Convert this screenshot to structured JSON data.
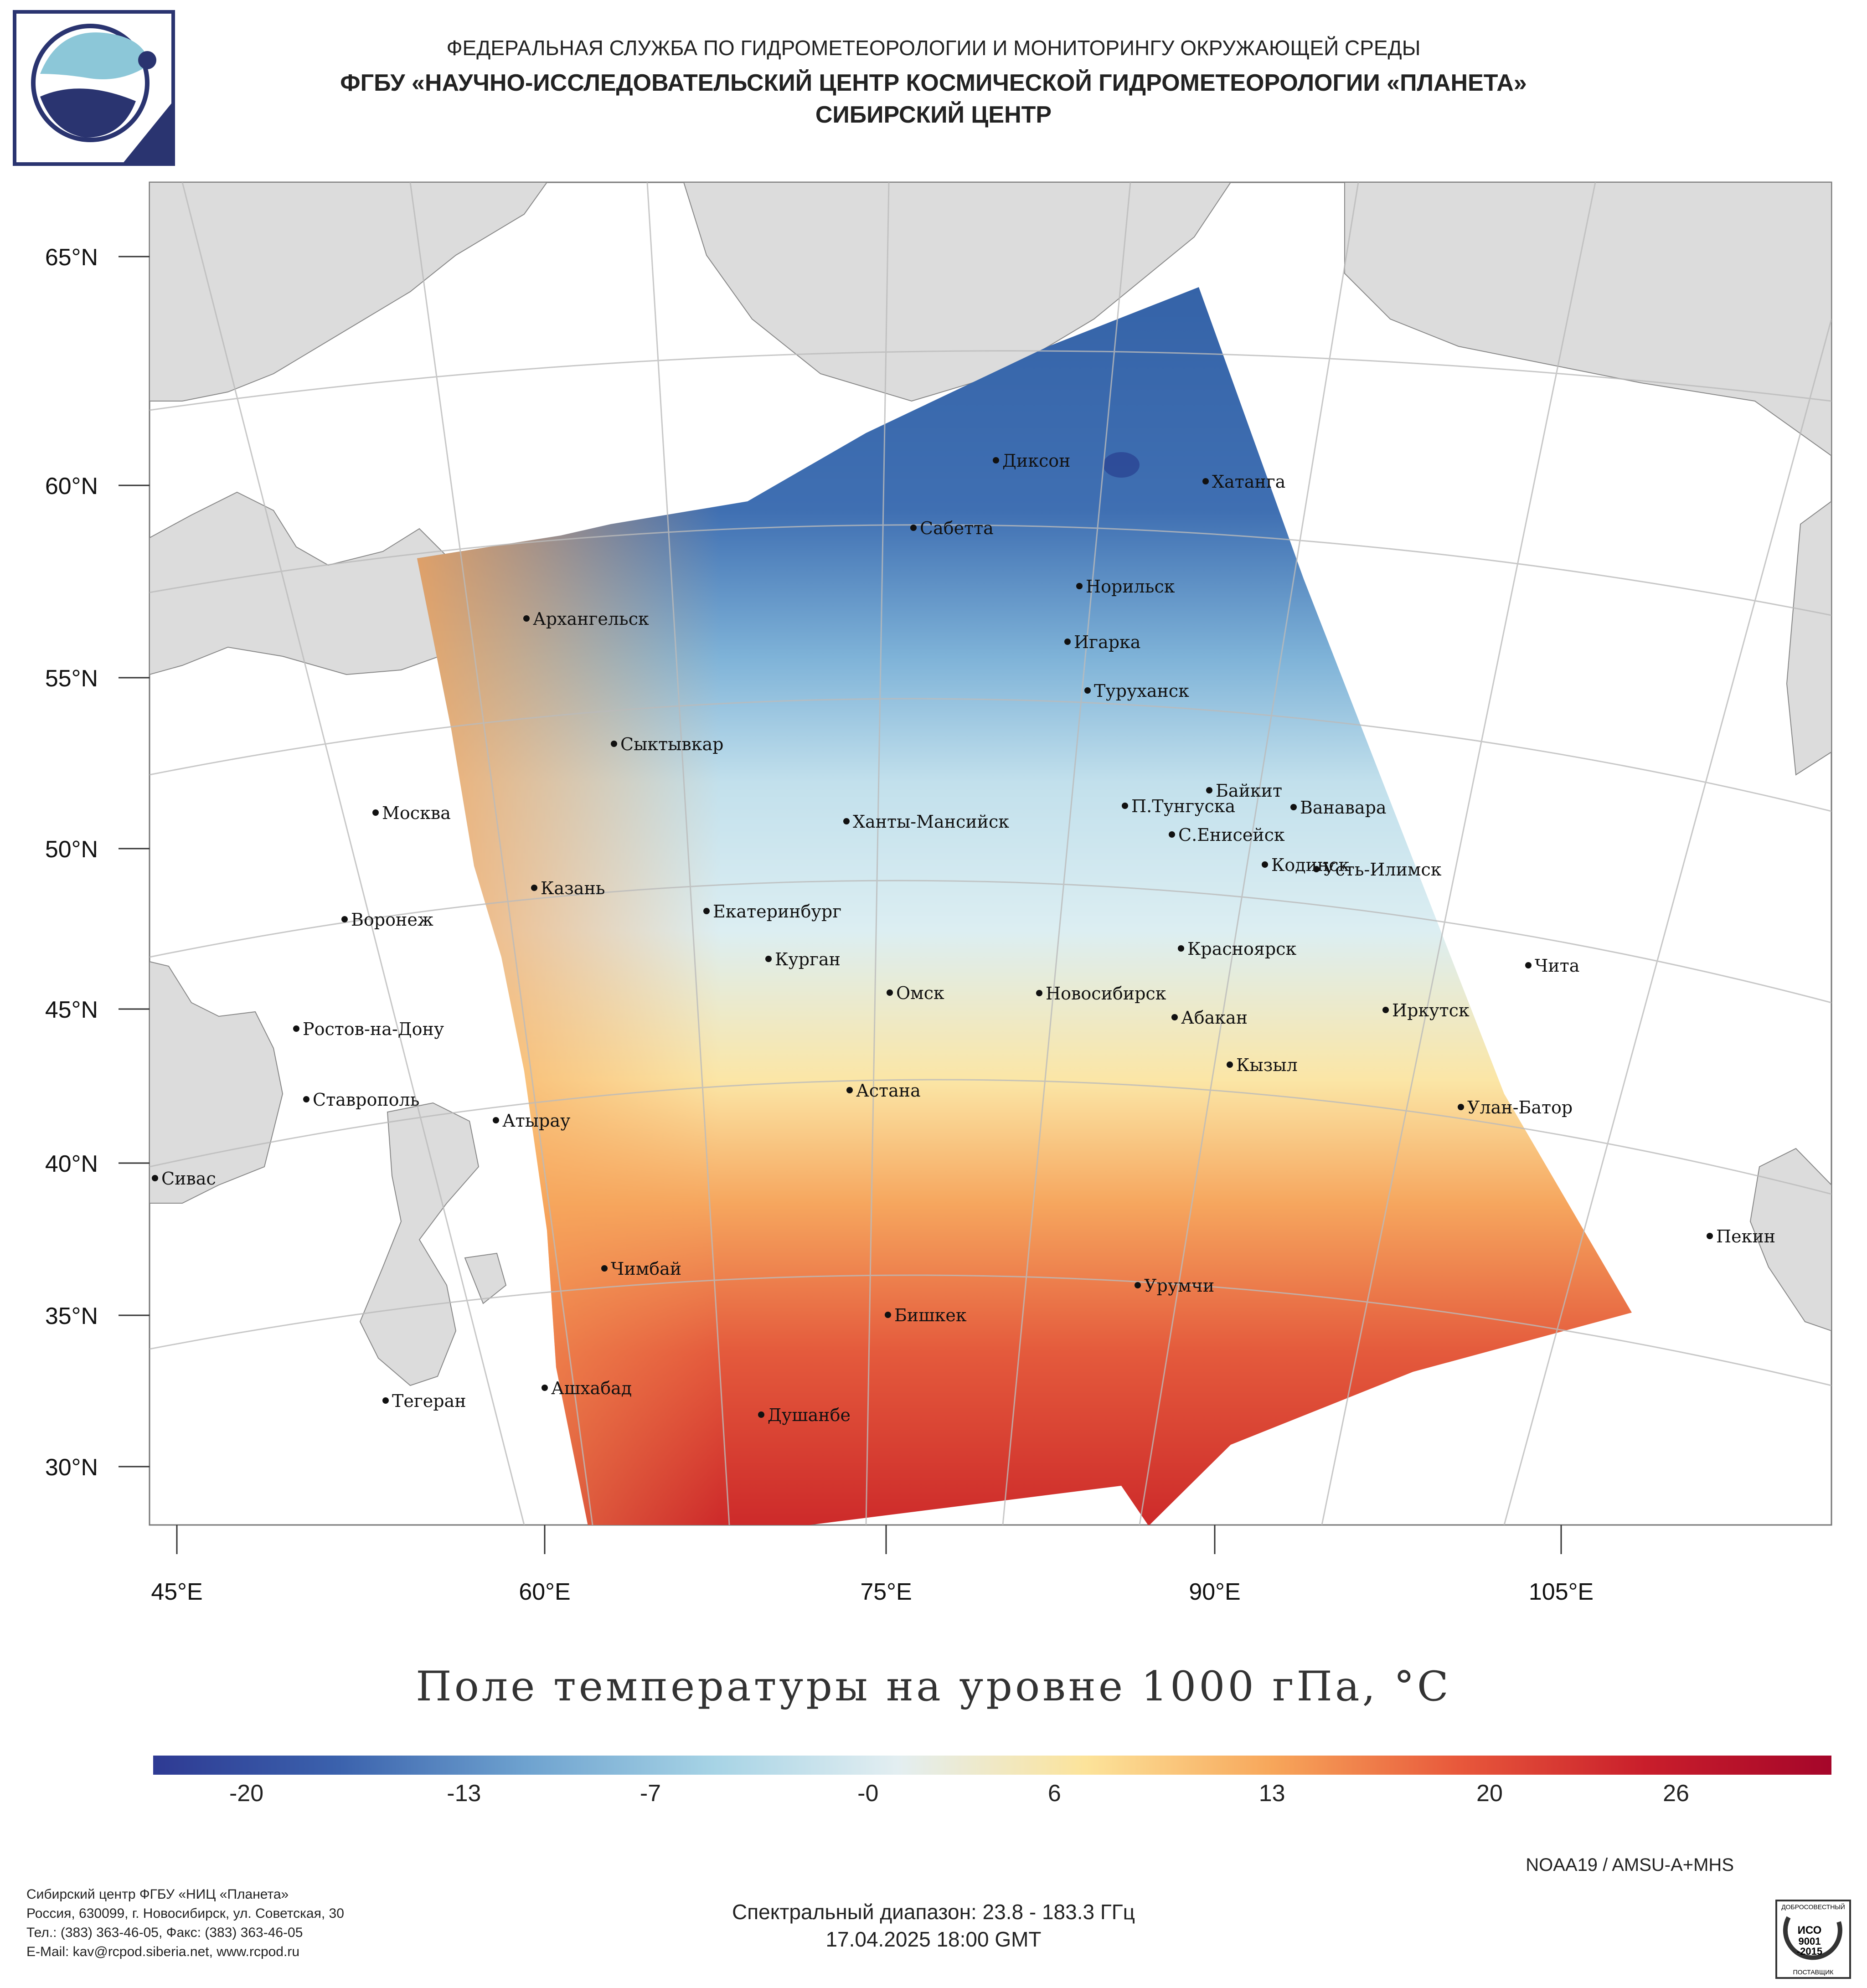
{
  "header": {
    "line1": "ФЕДЕРАЛЬНАЯ СЛУЖБА ПО ГИДРОМЕТЕОРОЛОГИИ И МОНИТОРИНГУ ОКРУЖАЮЩЕЙ СРЕДЫ",
    "line2": "ФГБУ «НАУЧНО-ИССЛЕДОВАТЕЛЬСКИЙ ЦЕНТР КОСМИЧЕСКОЙ ГИДРОМЕТЕОРОЛОГИИ «ПЛАНЕТА»",
    "line3": "СИБИРСКИЙ ЦЕНТР"
  },
  "map": {
    "lat_labels": [
      "65°N",
      "60°N",
      "55°N",
      "50°N",
      "45°N",
      "40°N",
      "35°N",
      "30°N"
    ],
    "lon_labels": [
      "45°E",
      "60°E",
      "75°E",
      "90°E",
      "105°E"
    ],
    "cities": [
      {
        "name": "Диксон"
      },
      {
        "name": "Хатанга"
      },
      {
        "name": "Сабетта"
      },
      {
        "name": "Норильск"
      },
      {
        "name": "Архангельск"
      },
      {
        "name": "Игарка"
      },
      {
        "name": "Туруханск"
      },
      {
        "name": "Сыктывкар"
      },
      {
        "name": "Байкит"
      },
      {
        "name": "П.Тунгуска"
      },
      {
        "name": "Ванавара"
      },
      {
        "name": "Москва"
      },
      {
        "name": "Ханты-Мансийск"
      },
      {
        "name": "С.Енисейск"
      },
      {
        "name": "Кодинск"
      },
      {
        "name": "Усть-Илимск"
      },
      {
        "name": "Казань"
      },
      {
        "name": "Екатеринбург"
      },
      {
        "name": "Воронеж"
      },
      {
        "name": "Красноярск"
      },
      {
        "name": "Курган"
      },
      {
        "name": "Чита"
      },
      {
        "name": "Омск"
      },
      {
        "name": "Новосибирск"
      },
      {
        "name": "Иркутск"
      },
      {
        "name": "Ростов-на-Дону"
      },
      {
        "name": "Абакан"
      },
      {
        "name": "Кызыл"
      },
      {
        "name": "Ставрополь"
      },
      {
        "name": "Астана"
      },
      {
        "name": "Улан-Батор"
      },
      {
        "name": "Атырау"
      },
      {
        "name": "Сивас"
      },
      {
        "name": "Пекин"
      },
      {
        "name": "Чимбай"
      },
      {
        "name": "Урумчи"
      },
      {
        "name": "Бишкек"
      },
      {
        "name": "Ашхабад"
      },
      {
        "name": "Тегеран"
      },
      {
        "name": "Душанбе"
      }
    ]
  },
  "title": "Поле температуры на уровне 1000 гПа, °C",
  "colorbar": {
    "labels": [
      "-20",
      "-13",
      "-7",
      "-0",
      "6",
      "13",
      "20",
      "26"
    ],
    "range": [
      -23,
      31
    ],
    "colors": [
      "#2e3a93",
      "#3b62ad",
      "#6ea2cf",
      "#a6d3e5",
      "#e3eef1",
      "#fce39a",
      "#f7a65a",
      "#e8583b",
      "#c91e2b",
      "#a5062a"
    ]
  },
  "satellite": "NOAA19 / AMSU-A+MHS",
  "spectral": "Спектральный диапазон: 23.8 - 183.3 ГГц",
  "date": "17.04.2025 18:00 GMT",
  "footer": {
    "line1": "Сибирский центр ФГБУ «НИЦ «Планета»",
    "line2": "Россия, 630099, г. Новосибирск, ул. Советская, 30",
    "line3": "Тел.: (383) 363-46-05, Факс: (383) 363-46-05",
    "line4": "E-Mail: kav@rcpod.siberia.net, www.rcpod.ru"
  },
  "iso_badge": {
    "top": "ДОБРОСОВЕСТНЫЙ",
    "mid1": "ИСО",
    "mid2": "9001",
    "mid3": "-2015",
    "bottom": "ПОСТАВЩИК"
  }
}
